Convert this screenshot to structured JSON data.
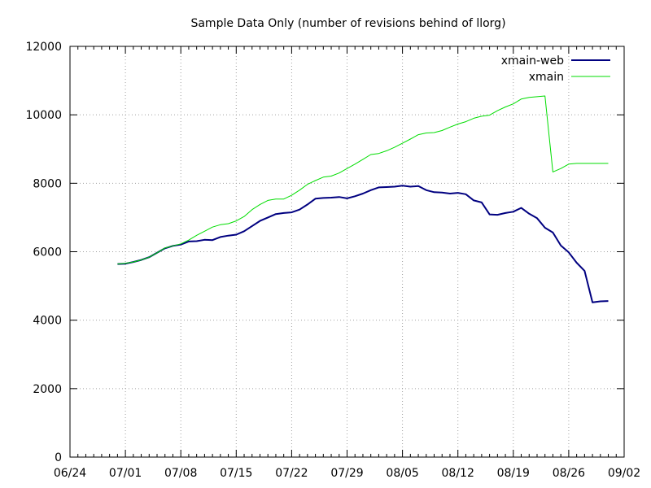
{
  "chart_data": {
    "type": "line",
    "title": "Sample Data Only (number of revisions behind of llorg)",
    "xlabel": "",
    "ylabel": "",
    "xlim_days": [
      0,
      70
    ],
    "x_tick_labels": [
      "06/24",
      "07/01",
      "07/08",
      "07/15",
      "07/22",
      "07/29",
      "08/05",
      "08/12",
      "08/19",
      "08/26",
      "09/02"
    ],
    "ylim": [
      0,
      12000
    ],
    "y_ticks": [
      0,
      2000,
      4000,
      6000,
      8000,
      10000,
      12000
    ],
    "grid": true,
    "legend_position": "top-right",
    "series": [
      {
        "name": "xmain-web",
        "color": "#000080",
        "x_days": [
          6,
          7,
          8,
          9,
          10,
          11,
          12,
          13,
          14,
          15,
          16,
          17,
          18,
          19,
          20,
          21,
          22,
          23,
          24,
          25,
          26,
          27,
          28,
          29,
          30,
          31,
          32,
          33,
          34,
          35,
          36,
          37,
          38,
          39,
          40,
          41,
          42,
          43,
          44,
          45,
          46,
          47,
          48,
          49,
          50,
          51,
          52,
          53,
          54,
          55,
          56,
          57,
          58,
          59,
          60,
          61,
          62,
          63,
          64,
          65,
          66,
          67,
          68
        ],
        "values": [
          5640,
          5650,
          5700,
          5760,
          5840,
          5970,
          6100,
          6170,
          6210,
          6300,
          6310,
          6350,
          6340,
          6430,
          6470,
          6500,
          6600,
          6750,
          6900,
          7000,
          7100,
          7130,
          7150,
          7230,
          7380,
          7550,
          7570,
          7580,
          7600,
          7560,
          7620,
          7700,
          7800,
          7880,
          7890,
          7900,
          7930,
          7900,
          7920,
          7800,
          7740,
          7730,
          7700,
          7720,
          7680,
          7500,
          7440,
          7090,
          7080,
          7130,
          7170,
          7280,
          7110,
          6980,
          6700,
          6560,
          6180,
          5980,
          5680,
          5440,
          4520,
          4550,
          4560
        ]
      },
      {
        "name": "xmain",
        "color": "#00dd00",
        "x_days": [
          6,
          7,
          8,
          9,
          10,
          11,
          12,
          13,
          14,
          15,
          16,
          17,
          18,
          19,
          20,
          21,
          22,
          23,
          24,
          25,
          26,
          27,
          28,
          29,
          30,
          31,
          32,
          33,
          34,
          35,
          36,
          37,
          38,
          39,
          40,
          41,
          42,
          43,
          44,
          45,
          46,
          47,
          48,
          49,
          50,
          51,
          52,
          53,
          54,
          55,
          56,
          57,
          58,
          59,
          60,
          61,
          62,
          63,
          64,
          65,
          66,
          67,
          68
        ],
        "values": [
          5640,
          5660,
          5700,
          5760,
          5840,
          5970,
          6110,
          6170,
          6230,
          6340,
          6480,
          6600,
          6720,
          6790,
          6820,
          6900,
          7030,
          7230,
          7380,
          7500,
          7540,
          7540,
          7650,
          7800,
          7970,
          8080,
          8180,
          8210,
          8300,
          8430,
          8560,
          8700,
          8840,
          8870,
          8950,
          9050,
          9170,
          9290,
          9420,
          9470,
          9480,
          9540,
          9640,
          9730,
          9800,
          9900,
          9960,
          9990,
          10120,
          10230,
          10320,
          10460,
          10510,
          10530,
          10550,
          8330,
          8430,
          8560,
          8580,
          8580,
          8580,
          8580,
          8580
        ]
      }
    ]
  }
}
